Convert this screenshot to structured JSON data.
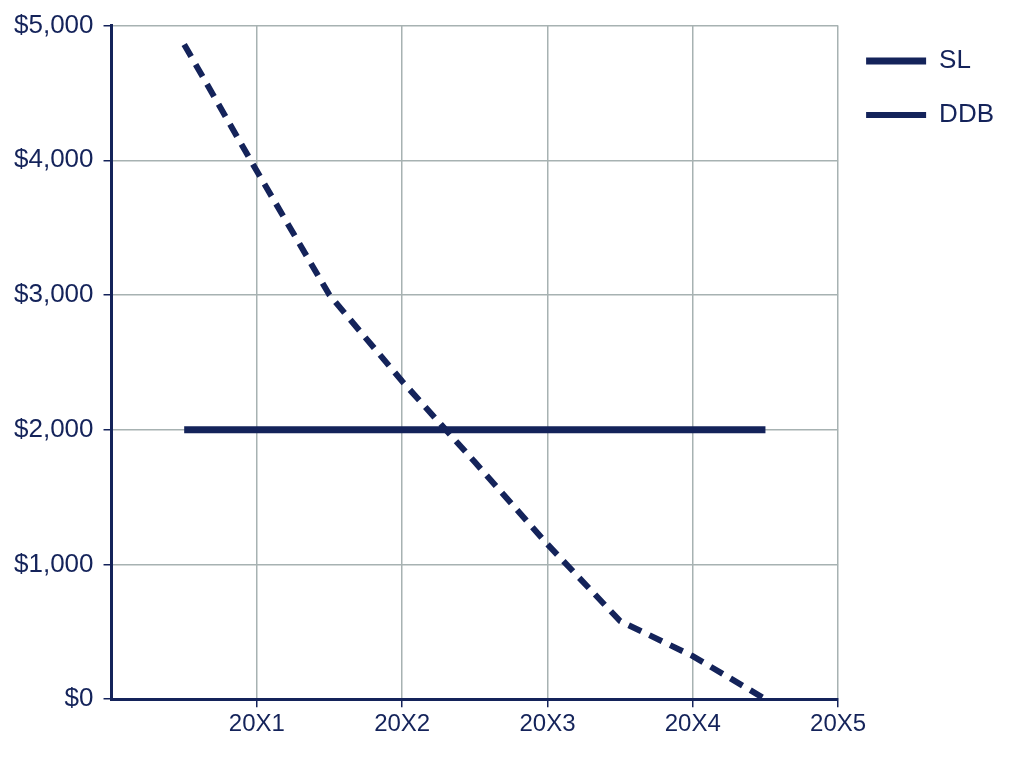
{
  "chart_data": {
    "type": "line",
    "x": [
      0.5,
      1,
      1.5,
      2,
      2.5,
      3,
      3.5,
      4,
      4.5
    ],
    "series": [
      {
        "name": "SL",
        "color": "#14235a",
        "line_style": "solid",
        "values": [
          2000,
          2000,
          2000,
          2000,
          2000,
          2000,
          2000,
          2000,
          2000
        ]
      },
      {
        "name": "DDB",
        "color": "#14235a",
        "line_style": "dashed",
        "values": [
          4860,
          3920,
          3000,
          2360,
          1760,
          1150,
          580,
          320,
          0
        ]
      }
    ],
    "xlim": [
      0,
      5
    ],
    "xticks": [
      {
        "value": 1,
        "label": "20X1"
      },
      {
        "value": 2,
        "label": "20X2"
      },
      {
        "value": 3,
        "label": "20X3"
      },
      {
        "value": 4,
        "label": "20X4"
      },
      {
        "value": 5,
        "label": "20X5"
      }
    ],
    "ylim": [
      0,
      5000
    ],
    "yticks": [
      {
        "value": 0,
        "label": "$0"
      },
      {
        "value": 1000,
        "label": "$1,000"
      },
      {
        "value": 2000,
        "label": "$2,000"
      },
      {
        "value": 3000,
        "label": "$3,000"
      },
      {
        "value": 4000,
        "label": "$4,000"
      },
      {
        "value": 5000,
        "label": "$5,000"
      }
    ],
    "grid": true,
    "legend": "right"
  }
}
